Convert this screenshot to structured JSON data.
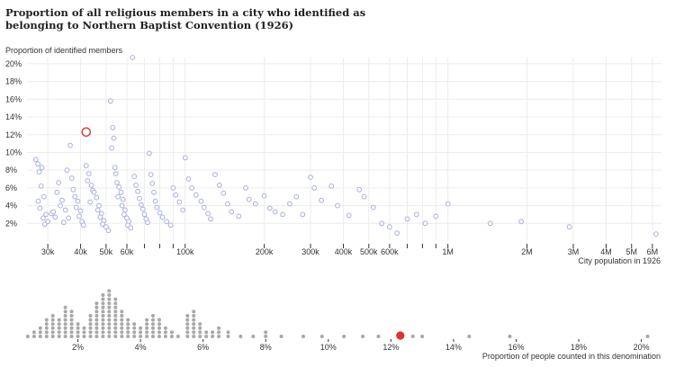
{
  "title": "Proportion of all religious members in a city who identified as belonging to Northern Baptist Convention (1926)",
  "colors": {
    "scatter_point": "#a9aee0",
    "highlight": "#e0332b",
    "dot": "#a8a8a8",
    "grid": "#ececec",
    "axis": "#333333",
    "text": "#333333"
  },
  "chart_data": [
    {
      "type": "scatter",
      "ylabel": "Proportion of identified members",
      "xlabel": "City population in 1926",
      "x_scale": "log",
      "xlim": [
        25000,
        6500000
      ],
      "ylim": [
        0,
        0.205
      ],
      "grid": true,
      "yticks": [
        {
          "value": 0.02,
          "label": "2%"
        },
        {
          "value": 0.04,
          "label": "4%"
        },
        {
          "value": 0.06,
          "label": "6%"
        },
        {
          "value": 0.08,
          "label": "8%"
        },
        {
          "value": 0.1,
          "label": "10%"
        },
        {
          "value": 0.12,
          "label": "12%"
        },
        {
          "value": 0.14,
          "label": "14%"
        },
        {
          "value": 0.16,
          "label": "16%"
        },
        {
          "value": 0.18,
          "label": "18%"
        },
        {
          "value": 0.2,
          "label": "20%"
        }
      ],
      "xticks": [
        {
          "value": 30000,
          "label": "30k"
        },
        {
          "value": 40000,
          "label": "40k"
        },
        {
          "value": 50000,
          "label": "50k"
        },
        {
          "value": 60000,
          "label": "60k"
        },
        {
          "value": 70000,
          "label": ""
        },
        {
          "value": 80000,
          "label": ""
        },
        {
          "value": 90000,
          "label": ""
        },
        {
          "value": 100000,
          "label": "100k"
        },
        {
          "value": 200000,
          "label": "200k"
        },
        {
          "value": 300000,
          "label": "300k"
        },
        {
          "value": 400000,
          "label": "400k"
        },
        {
          "value": 500000,
          "label": "500k"
        },
        {
          "value": 600000,
          "label": "600k"
        },
        {
          "value": 700000,
          "label": ""
        },
        {
          "value": 800000,
          "label": ""
        },
        {
          "value": 900000,
          "label": ""
        },
        {
          "value": 1000000,
          "label": "1M"
        },
        {
          "value": 2000000,
          "label": "2M"
        },
        {
          "value": 3000000,
          "label": "3M"
        },
        {
          "value": 4000000,
          "label": "4M"
        },
        {
          "value": 5000000,
          "label": "5M"
        },
        {
          "value": 6000000,
          "label": "6M"
        }
      ],
      "highlight": {
        "x": 42000,
        "y": 0.123
      },
      "points": [
        [
          27000,
          0.092
        ],
        [
          27500,
          0.087
        ],
        [
          28500,
          0.083
        ],
        [
          27800,
          0.078
        ],
        [
          28300,
          0.062
        ],
        [
          29000,
          0.05
        ],
        [
          27600,
          0.045
        ],
        [
          28000,
          0.037
        ],
        [
          29500,
          0.03
        ],
        [
          28800,
          0.026
        ],
        [
          30000,
          0.022
        ],
        [
          29200,
          0.019
        ],
        [
          31000,
          0.031
        ],
        [
          32000,
          0.027
        ],
        [
          31500,
          0.033
        ],
        [
          33000,
          0.066
        ],
        [
          32500,
          0.055
        ],
        [
          34000,
          0.046
        ],
        [
          33500,
          0.04
        ],
        [
          35000,
          0.035
        ],
        [
          36000,
          0.026
        ],
        [
          34500,
          0.021
        ],
        [
          36500,
          0.108
        ],
        [
          35500,
          0.08
        ],
        [
          37000,
          0.071
        ],
        [
          37500,
          0.058
        ],
        [
          38000,
          0.05
        ],
        [
          39000,
          0.045
        ],
        [
          38500,
          0.038
        ],
        [
          40000,
          0.034
        ],
        [
          39500,
          0.028
        ],
        [
          40500,
          0.022
        ],
        [
          41000,
          0.018
        ],
        [
          42000,
          0.085
        ],
        [
          43000,
          0.076
        ],
        [
          42500,
          0.068
        ],
        [
          44000,
          0.063
        ],
        [
          44500,
          0.057
        ],
        [
          45000,
          0.055
        ],
        [
          46000,
          0.049
        ],
        [
          43500,
          0.044
        ],
        [
          47000,
          0.04
        ],
        [
          46500,
          0.035
        ],
        [
          48000,
          0.031
        ],
        [
          47500,
          0.027
        ],
        [
          49000,
          0.023
        ],
        [
          48500,
          0.019
        ],
        [
          50000,
          0.016
        ],
        [
          51000,
          0.012
        ],
        [
          52000,
          0.158
        ],
        [
          53000,
          0.128
        ],
        [
          53500,
          0.116
        ],
        [
          52500,
          0.105
        ],
        [
          54000,
          0.083
        ],
        [
          54500,
          0.076
        ],
        [
          55000,
          0.066
        ],
        [
          56000,
          0.061
        ],
        [
          57000,
          0.055
        ],
        [
          55500,
          0.05
        ],
        [
          58000,
          0.047
        ],
        [
          57500,
          0.04
        ],
        [
          59000,
          0.035
        ],
        [
          58500,
          0.03
        ],
        [
          60000,
          0.026
        ],
        [
          61000,
          0.022
        ],
        [
          60500,
          0.018
        ],
        [
          62000,
          0.015
        ],
        [
          63000,
          0.207
        ],
        [
          64000,
          0.073
        ],
        [
          65000,
          0.063
        ],
        [
          66000,
          0.056
        ],
        [
          67000,
          0.048
        ],
        [
          68000,
          0.041
        ],
        [
          69000,
          0.036
        ],
        [
          70000,
          0.03
        ],
        [
          71000,
          0.025
        ],
        [
          72000,
          0.021
        ],
        [
          73000,
          0.099
        ],
        [
          74000,
          0.075
        ],
        [
          75000,
          0.065
        ],
        [
          76000,
          0.055
        ],
        [
          77000,
          0.045
        ],
        [
          78000,
          0.038
        ],
        [
          80000,
          0.032
        ],
        [
          82000,
          0.027
        ],
        [
          85000,
          0.022
        ],
        [
          88000,
          0.018
        ],
        [
          90000,
          0.06
        ],
        [
          92000,
          0.052
        ],
        [
          95000,
          0.044
        ],
        [
          98000,
          0.035
        ],
        [
          100000,
          0.094
        ],
        [
          103000,
          0.07
        ],
        [
          106000,
          0.06
        ],
        [
          110000,
          0.052
        ],
        [
          115000,
          0.045
        ],
        [
          118000,
          0.038
        ],
        [
          122000,
          0.031
        ],
        [
          125000,
          0.025
        ],
        [
          130000,
          0.075
        ],
        [
          135000,
          0.063
        ],
        [
          140000,
          0.054
        ],
        [
          145000,
          0.042
        ],
        [
          150000,
          0.033
        ],
        [
          160000,
          0.028
        ],
        [
          170000,
          0.06
        ],
        [
          175000,
          0.047
        ],
        [
          185000,
          0.042
        ],
        [
          200000,
          0.051
        ],
        [
          210000,
          0.037
        ],
        [
          220000,
          0.033
        ],
        [
          235000,
          0.03
        ],
        [
          250000,
          0.042
        ],
        [
          265000,
          0.05
        ],
        [
          280000,
          0.03
        ],
        [
          300000,
          0.072
        ],
        [
          310000,
          0.06
        ],
        [
          330000,
          0.046
        ],
        [
          360000,
          0.062
        ],
        [
          380000,
          0.04
        ],
        [
          420000,
          0.029
        ],
        [
          460000,
          0.058
        ],
        [
          480000,
          0.05
        ],
        [
          520000,
          0.038
        ],
        [
          560000,
          0.02
        ],
        [
          600000,
          0.016
        ],
        [
          640000,
          0.009
        ],
        [
          700000,
          0.025
        ],
        [
          760000,
          0.03
        ],
        [
          820000,
          0.02
        ],
        [
          900000,
          0.028
        ],
        [
          1000000,
          0.042
        ],
        [
          1450000,
          0.02
        ],
        [
          1900000,
          0.022
        ],
        [
          2900000,
          0.016
        ],
        [
          6200000,
          0.008
        ]
      ]
    },
    {
      "type": "strip",
      "xlabel": "Proportion of people counted in this denomination",
      "xlim": [
        0,
        0.205
      ],
      "xticks": [
        {
          "value": 0.02,
          "label": "2%"
        },
        {
          "value": 0.04,
          "label": "4%"
        },
        {
          "value": 0.06,
          "label": "6%"
        },
        {
          "value": 0.08,
          "label": "8%"
        },
        {
          "value": 0.1,
          "label": "10%"
        },
        {
          "value": 0.12,
          "label": "12%"
        },
        {
          "value": 0.14,
          "label": "14%"
        },
        {
          "value": 0.16,
          "label": "16%"
        },
        {
          "value": 0.18,
          "label": "18%"
        },
        {
          "value": 0.2,
          "label": "20%"
        }
      ],
      "highlight": 0.123,
      "stacks": [
        [
          0.004,
          1
        ],
        [
          0.006,
          2
        ],
        [
          0.008,
          3
        ],
        [
          0.01,
          5
        ],
        [
          0.012,
          6
        ],
        [
          0.014,
          5
        ],
        [
          0.016,
          8
        ],
        [
          0.018,
          7
        ],
        [
          0.02,
          4
        ],
        [
          0.022,
          3
        ],
        [
          0.024,
          6
        ],
        [
          0.026,
          9
        ],
        [
          0.028,
          11
        ],
        [
          0.03,
          12
        ],
        [
          0.032,
          10
        ],
        [
          0.034,
          7
        ],
        [
          0.036,
          5
        ],
        [
          0.038,
          4
        ],
        [
          0.04,
          3
        ],
        [
          0.042,
          5
        ],
        [
          0.044,
          6
        ],
        [
          0.046,
          5
        ],
        [
          0.048,
          3
        ],
        [
          0.05,
          2
        ],
        [
          0.052,
          1
        ],
        [
          0.055,
          6
        ],
        [
          0.057,
          7
        ],
        [
          0.059,
          4
        ],
        [
          0.061,
          2
        ],
        [
          0.063,
          2
        ],
        [
          0.065,
          3
        ],
        [
          0.068,
          2
        ],
        [
          0.072,
          1
        ],
        [
          0.076,
          1
        ],
        [
          0.08,
          2
        ],
        [
          0.085,
          1
        ],
        [
          0.092,
          1
        ],
        [
          0.098,
          1
        ],
        [
          0.105,
          1
        ],
        [
          0.111,
          1
        ],
        [
          0.116,
          1
        ],
        [
          0.127,
          1
        ],
        [
          0.13,
          1
        ],
        [
          0.145,
          1
        ],
        [
          0.158,
          1
        ],
        [
          0.202,
          1
        ]
      ]
    }
  ]
}
